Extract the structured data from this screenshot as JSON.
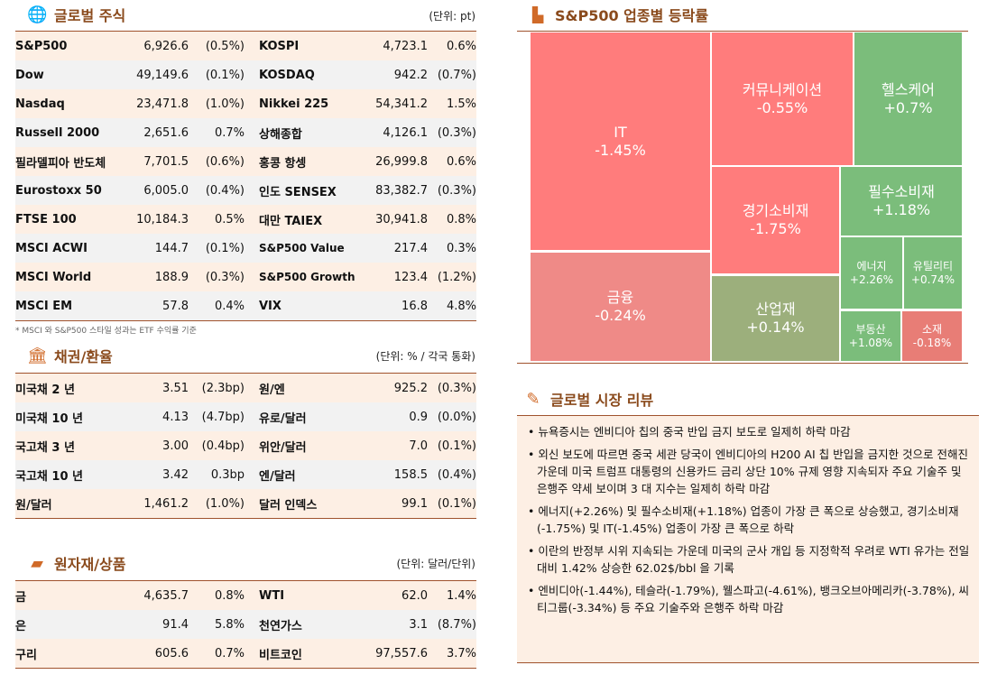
{
  "equities": {
    "title": "글로벌 주식",
    "unit": "(단위: pt)",
    "note": "* MSCI 와 S&P500 스타일 성과는 ETF 수익률 기준",
    "rows": [
      {
        "n1": "S&P500",
        "v1": "6,926.6",
        "p1": "(0.5%)",
        "n2": "KOSPI",
        "v2": "4,723.1",
        "p2": "0.6%"
      },
      {
        "n1": "Dow",
        "v1": "49,149.6",
        "p1": "(0.1%)",
        "n2": "KOSDAQ",
        "v2": "942.2",
        "p2": "(0.7%)"
      },
      {
        "n1": "Nasdaq",
        "v1": "23,471.8",
        "p1": "(1.0%)",
        "n2": "Nikkei 225",
        "v2": "54,341.2",
        "p2": "1.5%"
      },
      {
        "n1": "Russell 2000",
        "v1": "2,651.6",
        "p1": "0.7%",
        "n2": "상해종합",
        "v2": "4,126.1",
        "p2": "(0.3%)"
      },
      {
        "n1": "필라델피아 반도체",
        "v1": "7,701.5",
        "p1": "(0.6%)",
        "n2": "홍콩 항셍",
        "v2": "26,999.8",
        "p2": "0.6%"
      },
      {
        "n1": "Eurostoxx 50",
        "v1": "6,005.0",
        "p1": "(0.4%)",
        "n2": "인도 SENSEX",
        "v2": "83,382.7",
        "p2": "(0.3%)"
      },
      {
        "n1": "FTSE 100",
        "v1": "10,184.3",
        "p1": "0.5%",
        "n2": "대만 TAIEX",
        "v2": "30,941.8",
        "p2": "0.8%"
      },
      {
        "n1": "MSCI ACWI",
        "v1": "144.7",
        "p1": "(0.1%)",
        "n2": "S&P500 Value",
        "v2": "217.4",
        "p2": "0.3%"
      },
      {
        "n1": "MSCI World",
        "v1": "188.9",
        "p1": "(0.3%)",
        "n2": "S&P500 Growth",
        "v2": "123.4",
        "p2": "(1.2%)"
      },
      {
        "n1": "MSCI EM",
        "v1": "57.8",
        "p1": "0.4%",
        "n2": "VIX",
        "v2": "16.8",
        "p2": "4.8%"
      }
    ]
  },
  "bonds": {
    "title": "채권/환율",
    "unit": "(단위: % / 각국 통화)",
    "rows": [
      {
        "n1": "미국채 2 년",
        "v1": "3.51",
        "p1": "(2.3bp)",
        "n2": "원/엔",
        "v2": "925.2",
        "p2": "(0.3%)"
      },
      {
        "n1": "미국채 10 년",
        "v1": "4.13",
        "p1": "(4.7bp)",
        "n2": "유로/달러",
        "v2": "0.9",
        "p2": "(0.0%)"
      },
      {
        "n1": "국고채 3 년",
        "v1": "3.00",
        "p1": "(0.4bp)",
        "n2": "위안/달러",
        "v2": "7.0",
        "p2": "(0.1%)"
      },
      {
        "n1": "국고채 10 년",
        "v1": "3.42",
        "p1": "0.3bp",
        "n2": "엔/달러",
        "v2": "158.5",
        "p2": "(0.4%)"
      },
      {
        "n1": "원/달러",
        "v1": "1,461.2",
        "p1": "(1.0%)",
        "n2": "달러 인덱스",
        "v2": "99.1",
        "p2": "(0.1%)"
      }
    ]
  },
  "commodities": {
    "title": "원자재/상품",
    "unit": "(단위: 달러/단위)",
    "rows": [
      {
        "n1": "금",
        "v1": "4,635.7",
        "p1": "0.8%",
        "n2": "WTI",
        "v2": "62.0",
        "p2": "1.4%"
      },
      {
        "n1": "은",
        "v1": "91.4",
        "p1": "5.8%",
        "n2": "천연가스",
        "v2": "3.1",
        "p2": "(8.7%)"
      },
      {
        "n1": "구리",
        "v1": "605.6",
        "p1": "0.7%",
        "n2": "비트코인",
        "v2": "97,557.6",
        "p2": "3.7%"
      }
    ]
  },
  "treemap": {
    "title": "S&P500 업종별 등락률",
    "sectors": [
      {
        "label": "IT",
        "value": "-1.45%"
      },
      {
        "label": "금융",
        "value": "-0.24%"
      },
      {
        "label": "커뮤니케이션",
        "value": "-0.55%"
      },
      {
        "label": "헬스케어",
        "value": "+0.7%"
      },
      {
        "label": "경기소비재",
        "value": "-1.75%"
      },
      {
        "label": "산업재",
        "value": "+0.14%"
      },
      {
        "label": "필수소비재",
        "value": "+1.18%"
      },
      {
        "label": "에너지",
        "value": "+2.26%"
      },
      {
        "label": "유틸리티",
        "value": "+0.74%"
      },
      {
        "label": "부동산",
        "value": "+1.08%"
      },
      {
        "label": "소재",
        "value": "-0.18%"
      }
    ],
    "colors": {
      "down": "#ff7c7c",
      "up": "#7bbd7b"
    }
  },
  "review": {
    "title": "글로벌 시장 리뷰",
    "items": [
      "뉴욕증시는 엔비디아 칩의 중국 반입 금지 보도로 일제히 하락 마감",
      "외신 보도에 따르면 중국 세관 당국이 엔비디아의 H200 AI 칩 반입을 금지한 것으로 전해진 가운데 미국 트럼프 대통령의 신용카드 금리 상단 10% 규제 영향 지속되자 주요 기술주 및 은행주 약세 보이며 3 대 지수는 일제히 하락 마감",
      "에너지(+2.26%) 및 필수소비재(+1.18%) 업종이 가장 큰 폭으로 상승했고, 경기소비재(-1.75%) 및 IT(-1.45%) 업종이 가장 큰 폭으로 하락",
      "이란의 반정부 시위 지속되는 가운데 미국의 군사 개입 등 지정학적 우려로 WTI 유가는 전일대비 1.42% 상승한 62.02$/bbl 을 기록",
      "엔비디아(-1.44%), 테슬라(-1.79%), 웰스파고(-4.61%), 뱅크오브아메리카(-3.78%), 씨티그룹(-3.34%) 등 주요 기술주와 은행주 하락 마감"
    ]
  }
}
